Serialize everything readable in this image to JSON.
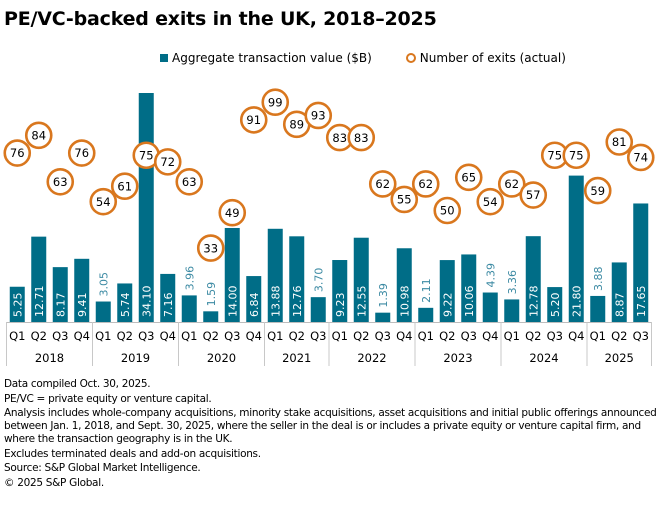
{
  "title": "PE/VC-backed exits in the UK, 2018–2025",
  "legend": {
    "bars_label": "Aggregate transaction value ($B)",
    "circles_label": "Number of exits (actual)"
  },
  "colors": {
    "bar": "#006D87",
    "circle": "#D9771E",
    "light_label": "#3C8AA3"
  },
  "chart_data": {
    "type": "bar",
    "title": "PE/VC-backed exits in the UK, 2018–2025",
    "xlabel": "",
    "ylabel": "",
    "grid": false,
    "legend_position": "top",
    "years": [
      {
        "year": "2018",
        "quarters": [
          "Q1",
          "Q2",
          "Q3",
          "Q4"
        ]
      },
      {
        "year": "2019",
        "quarters": [
          "Q1",
          "Q2",
          "Q3",
          "Q4"
        ]
      },
      {
        "year": "2020",
        "quarters": [
          "Q1",
          "Q2",
          "Q3",
          "Q4"
        ]
      },
      {
        "year": "2021",
        "quarters": [
          "Q1",
          "Q2",
          "Q3"
        ]
      },
      {
        "year": "2022",
        "quarters": [
          "Q1",
          "Q2",
          "Q3",
          "Q4"
        ]
      },
      {
        "year": "2023",
        "quarters": [
          "Q1",
          "Q2",
          "Q3",
          "Q4"
        ]
      },
      {
        "year": "2024",
        "quarters": [
          "Q1",
          "Q2",
          "Q3",
          "Q4"
        ]
      },
      {
        "year": "2025",
        "quarters": [
          "Q1",
          "Q2",
          "Q3"
        ]
      }
    ],
    "categories": [
      "2018 Q1",
      "2018 Q2",
      "2018 Q3",
      "2018 Q4",
      "2019 Q1",
      "2019 Q2",
      "2019 Q3",
      "2019 Q4",
      "2020 Q1",
      "2020 Q2",
      "2020 Q3",
      "2020 Q4",
      "2021 Q1",
      "2021 Q2",
      "2021 Q3",
      "2022 Q1",
      "2022 Q2",
      "2022 Q3",
      "2022 Q4",
      "2023 Q1",
      "2023 Q2",
      "2023 Q3",
      "2023 Q4",
      "2024 Q1",
      "2024 Q2",
      "2024 Q3",
      "2024 Q4",
      "2025 Q1",
      "2025 Q2",
      "2025 Q3"
    ],
    "series": [
      {
        "name": "Aggregate transaction value ($B)",
        "type": "bar",
        "values": [
          5.25,
          12.71,
          8.17,
          9.41,
          3.05,
          5.74,
          34.1,
          7.16,
          3.96,
          1.59,
          14.0,
          6.84,
          13.88,
          12.76,
          3.7,
          9.23,
          12.55,
          1.39,
          10.98,
          2.11,
          9.22,
          10.06,
          4.39,
          3.36,
          12.78,
          5.2,
          21.8,
          3.88,
          8.87,
          17.65
        ],
        "labels": [
          "5.25",
          "12.71",
          "8.17",
          "9.41",
          "3.05",
          "5.74",
          "34.10",
          "7.16",
          "3.96",
          "1.59",
          "14.00",
          "6.84",
          "13.88",
          "12.76",
          "3.70",
          "9.23",
          "12.55",
          "1.39",
          "10.98",
          "2.11",
          "9.22",
          "10.06",
          "4.39",
          "3.36",
          "12.78",
          "5.20",
          "21.80",
          "3.88",
          "8.87",
          "17.65"
        ]
      },
      {
        "name": "Number of exits (actual)",
        "type": "scatter",
        "values": [
          76,
          84,
          63,
          76,
          54,
          61,
          75,
          72,
          63,
          33,
          49,
          91,
          99,
          89,
          93,
          83,
          83,
          62,
          55,
          62,
          50,
          65,
          54,
          62,
          57,
          75,
          75,
          59,
          81,
          74
        ]
      }
    ],
    "ylim_bars": [
      0,
      34.1
    ],
    "ylim_exits": [
      0,
      104
    ]
  },
  "notes": [
    "Data compiled Oct. 30, 2025.",
    "PE/VC = private equity or venture capital.",
    "Analysis includes whole-company acquisitions, minority stake acquisitions, asset acquisitions and initial public offerings announced between Jan. 1, 2018, and Sept. 30, 2025, where the seller in the deal is or includes a private equity or venture capital firm, and where the transaction geography is in the UK.",
    "Excludes terminated deals and add-on acquisitions.",
    "Source: S&P Global Market Intelligence.",
    "© 2025 S&P Global."
  ]
}
